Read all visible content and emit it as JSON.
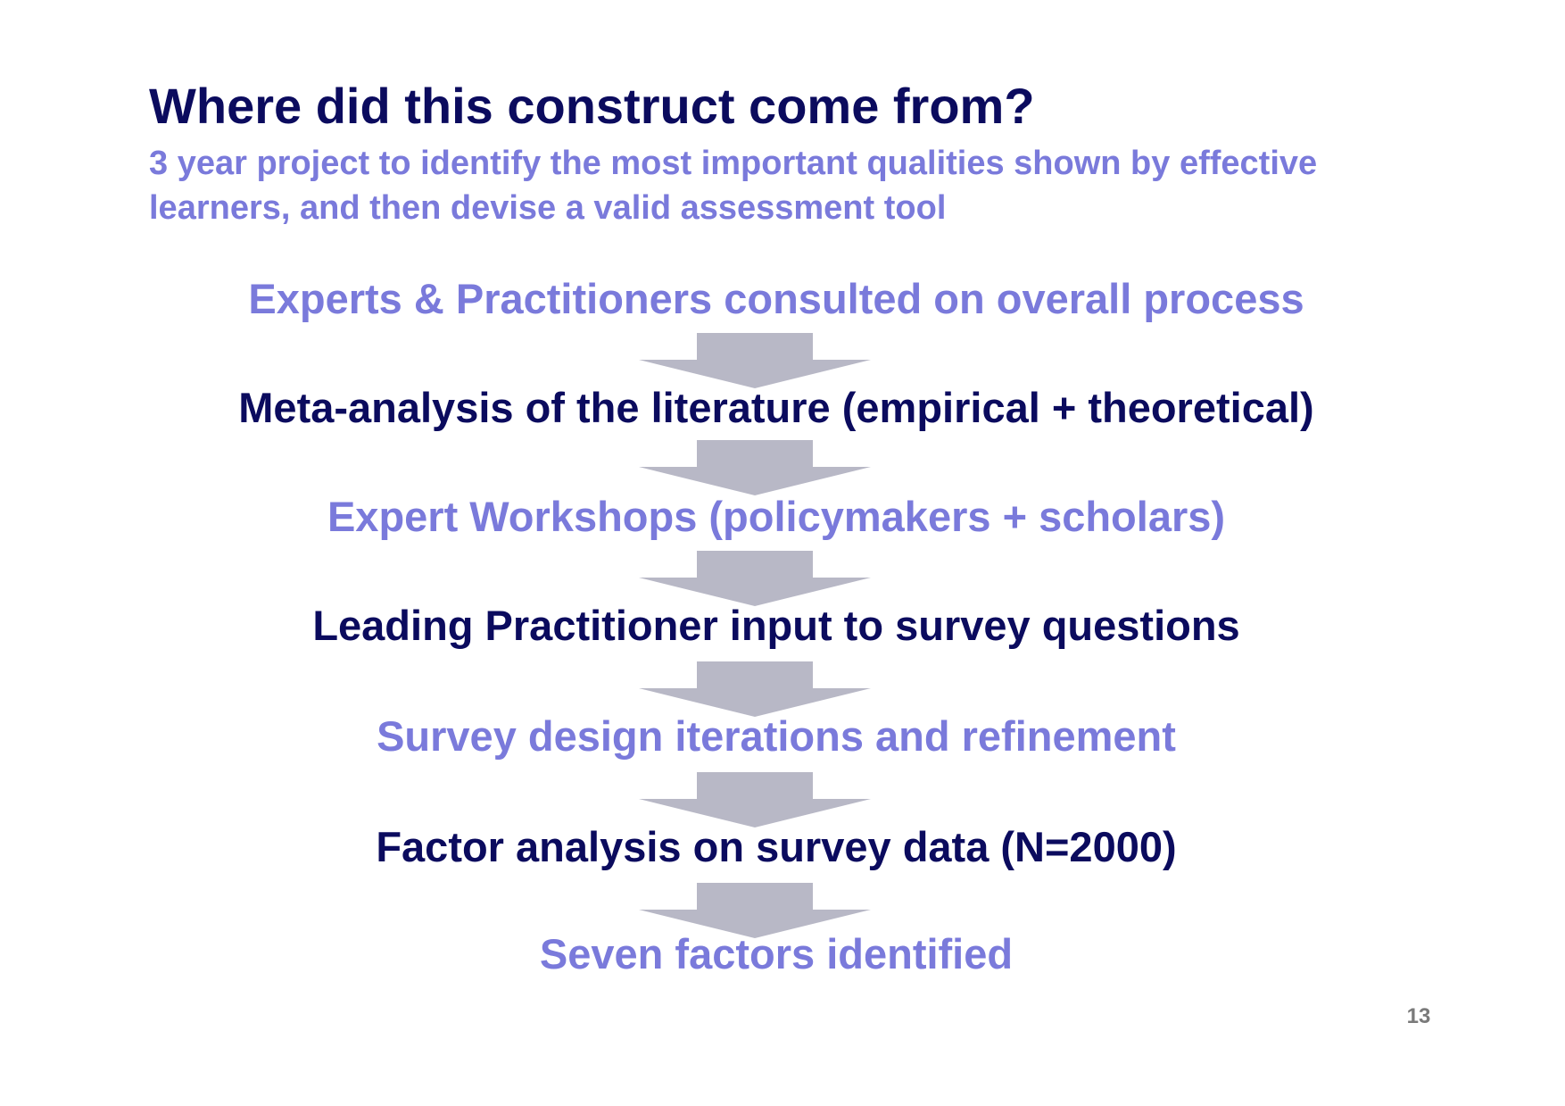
{
  "slide": {
    "title": "Where did this construct come from?",
    "subtitle": "3 year project to identify the most important qualities shown by effective learners, and then devise a valid assessment tool",
    "page_number": "13"
  },
  "flow": {
    "steps": [
      {
        "label": "Experts & Practitioners consulted on overall process",
        "style": "light"
      },
      {
        "label": "Meta-analysis of the literature (empirical + theoretical)",
        "style": "dark"
      },
      {
        "label": "Expert Workshops (policymakers + scholars)",
        "style": "light"
      },
      {
        "label": "Leading Practitioner input to survey questions",
        "style": "dark"
      },
      {
        "label": "Survey design iterations and refinement",
        "style": "light"
      },
      {
        "label": "Factor analysis on survey data (N=2000)",
        "style": "dark"
      },
      {
        "label": "Seven factors identified",
        "style": "light"
      }
    ],
    "colors": {
      "light_text": "#7a7adb",
      "dark_text": "#0b0b5e",
      "arrow": "#b8b8c6"
    }
  }
}
